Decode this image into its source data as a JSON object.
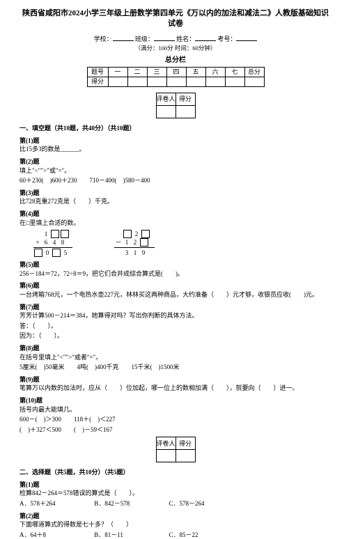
{
  "title": "陕西省咸阳市2024小学三年级上册数学第四单元《万以内的加法和减法二》人教版基础知识试卷",
  "info": {
    "school": "学校：",
    "class": "班级：",
    "name": "姓名：",
    "examno": "考号："
  },
  "timing": "（满分：100分 时间：60分钟）",
  "scorebar": {
    "label": "总分栏",
    "headers": [
      "题号",
      "一",
      "二",
      "三",
      "四",
      "五",
      "六",
      "七",
      "总分"
    ],
    "row2label": "得分"
  },
  "evalbox": {
    "h1": "评卷人",
    "h2": "得分"
  },
  "section1": "一、填空题（共10题，共40分）（共10题）",
  "q1": {
    "n": "第(1)题",
    "t": "比15多3的数是______。"
  },
  "q2": {
    "n": "第(2)题",
    "t1": "填上\"<\"\">\"或\"=\"。",
    "t2": "60＋230(　)600＋230　　710－400(　)580－400"
  },
  "q3": {
    "n": "第(3)题",
    "t": "比728克重272克是（　　）千克。"
  },
  "q4": {
    "n": "第(4)题",
    "t": "在□里填上合适的数。"
  },
  "arith": {
    "left": {
      "r1d": "1",
      "r2s": "+",
      "r2a": "6",
      "r2b": "4",
      "r2c": "8",
      "res_b": "0",
      "res_c": "5"
    },
    "right": {
      "r1c": "2",
      "r2s": "－",
      "r2a": "1",
      "r2b": "2",
      "res_a": "3",
      "res_b": "1",
      "res_c": "9"
    }
  },
  "q5": {
    "n": "第(5)题",
    "t": "256－184＝72，72÷8＝9，把它们合并成综合算式是(　　)。"
  },
  "q6": {
    "n": "第(6)题",
    "t": "一台烤箱768元，一个电热水壶227元，林林买这两种商品，大约准备（　　）元才够，收银员应收(　　)元。"
  },
  "q7": {
    "n": "第(7)题",
    "t1": "芳芳计算500－214＝384，她算得对吗？写出你判断的具体方法。",
    "t2": "答：（　　）。",
    "t3": "因为：（　　）。"
  },
  "q8": {
    "n": "第(8)题",
    "t1": "在括号里填上\"<\"\">\"或者\"=\"。",
    "t2": "5厘米(　)50毫米　　4吨(　)400千克　　15千米(　)1500米"
  },
  "q9": {
    "n": "第(9)题",
    "t": "笔算万以内数的加法时，应从（　　）位加起，哪一位上的数相加满（　　），就要向（　　）进一。"
  },
  "q10": {
    "n": "第(10)题",
    "t1": "括号内最大能填几。",
    "t2": "600－(　)＞300　　118＋(　)＜227",
    "t3": "(　)＋327＜500　　(　)－59＜167"
  },
  "section2": "二、选择题（共5题，共10分）（共5题）",
  "q11": {
    "n": "第(1)题",
    "t": "检算842－264＝578错误的算式是（　　）。",
    "a": "A．578＋264",
    "b": "B．842－578",
    "c": "C．578－264"
  },
  "q12": {
    "n": "第(2)题",
    "t": "下面哪道算式的得数是七十多？（　　）",
    "a": "A．64＋8",
    "b": "B．81－11",
    "c": "C．85－22"
  }
}
